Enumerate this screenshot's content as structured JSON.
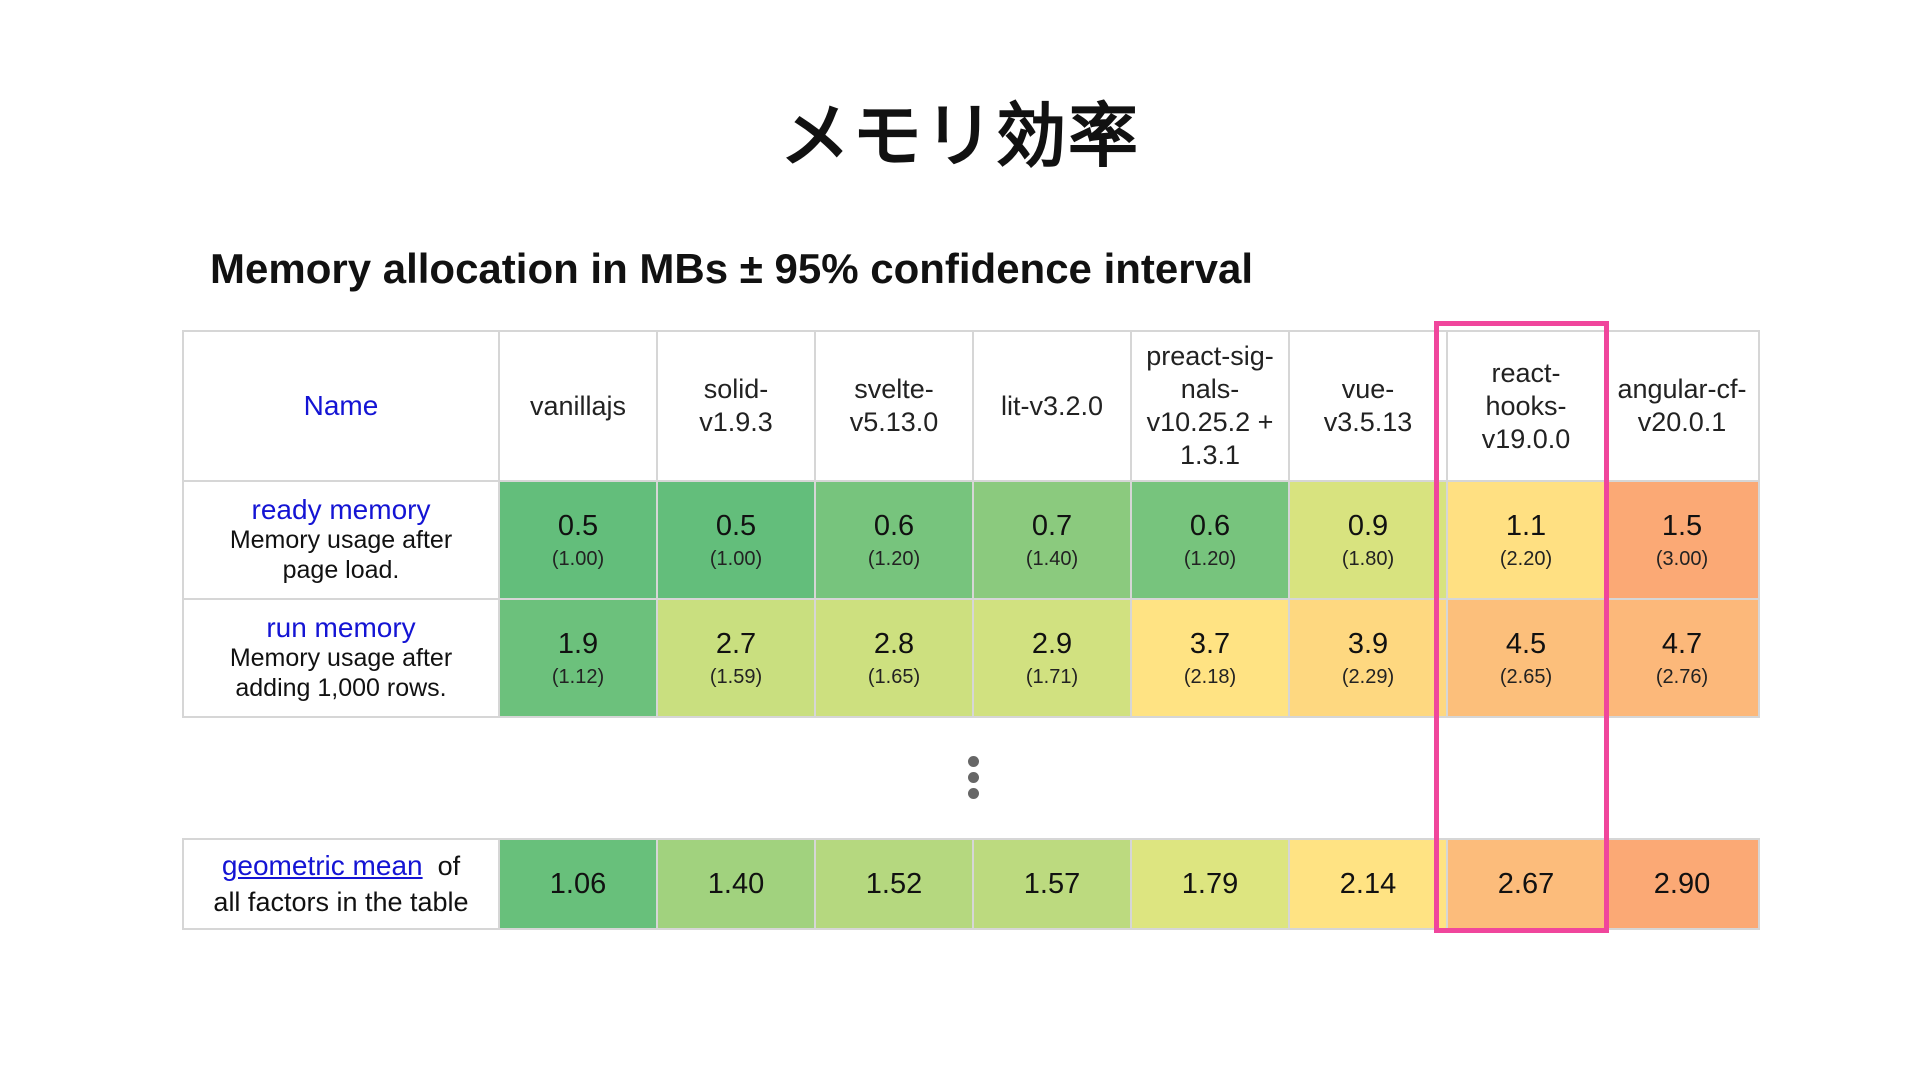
{
  "slide": {
    "title": "メモリ効率"
  },
  "table": {
    "title": "Memory allocation in MBs ± 95% confidence interval",
    "name_header": "Name",
    "frameworks": [
      "vanillajs",
      "solid-v1.9.3",
      "svelte-v5.13.0",
      "lit-v3.2.0",
      "preact-sig-nals-v10.25.2 + 1.3.1",
      "vue-v3.5.13",
      "react-hooks-v19.0.0",
      "angular-cf-v20.0.1"
    ],
    "frameworks_display": [
      [
        "vanillajs"
      ],
      [
        "solid-",
        "v1.9.3"
      ],
      [
        "svelte-",
        "v5.13.0"
      ],
      [
        "lit-v3.2.0"
      ],
      [
        "preact-sig-",
        "nals-",
        "v10.25.2 +",
        "1.3.1"
      ],
      [
        "vue-",
        "v3.5.13"
      ],
      [
        "react-",
        "hooks-",
        "v19.0.0"
      ],
      [
        "angular-cf-",
        "v20.0.1"
      ]
    ],
    "rows": [
      {
        "name": "ready memory",
        "description": "Memory usage after page load.",
        "description_lines": [
          "Memory usage after",
          "page load."
        ],
        "cells": [
          {
            "value": "0.5",
            "factor": "(1.00)",
            "color": "#63be7b"
          },
          {
            "value": "0.5",
            "factor": "(1.00)",
            "color": "#63be7b"
          },
          {
            "value": "0.6",
            "factor": "(1.20)",
            "color": "#77c47d"
          },
          {
            "value": "0.7",
            "factor": "(1.40)",
            "color": "#8bca7e"
          },
          {
            "value": "0.6",
            "factor": "(1.20)",
            "color": "#77c47d"
          },
          {
            "value": "0.9",
            "factor": "(1.80)",
            "color": "#d8e37f"
          },
          {
            "value": "1.1",
            "factor": "(2.20)",
            "color": "#ffe082"
          },
          {
            "value": "1.5",
            "factor": "(3.00)",
            "color": "#fba975"
          }
        ]
      },
      {
        "name": "run memory",
        "description": "Memory usage after adding 1,000 rows.",
        "description_lines": [
          "Memory usage after",
          "adding 1,000 rows."
        ],
        "cells": [
          {
            "value": "1.9",
            "factor": "(1.12)",
            "color": "#6cc17c"
          },
          {
            "value": "2.7",
            "factor": "(1.59)",
            "color": "#c9df7f"
          },
          {
            "value": "2.8",
            "factor": "(1.65)",
            "color": "#cde07f"
          },
          {
            "value": "2.9",
            "factor": "(1.71)",
            "color": "#d1e180"
          },
          {
            "value": "3.7",
            "factor": "(2.18)",
            "color": "#ffe383"
          },
          {
            "value": "3.9",
            "factor": "(2.29)",
            "color": "#fed880"
          },
          {
            "value": "4.5",
            "factor": "(2.65)",
            "color": "#fcbf7b"
          },
          {
            "value": "4.7",
            "factor": "(2.76)",
            "color": "#fcb87a"
          }
        ]
      }
    ],
    "geometric_mean": {
      "link": "geometric mean",
      "suffix": "of",
      "line2": "all factors in the table",
      "cells": [
        {
          "value": "1.06",
          "color": "#68c07b"
        },
        {
          "value": "1.40",
          "color": "#a1d27e"
        },
        {
          "value": "1.52",
          "color": "#b5d87f"
        },
        {
          "value": "1.57",
          "color": "#bcda7f"
        },
        {
          "value": "1.79",
          "color": "#dde580"
        },
        {
          "value": "2.14",
          "color": "#ffe383"
        },
        {
          "value": "2.67",
          "color": "#fcbc7b"
        },
        {
          "value": "2.90",
          "color": "#fba975"
        }
      ]
    }
  },
  "highlight": {
    "column": "react-hooks-v19.0.0",
    "color": "#f0469c"
  }
}
